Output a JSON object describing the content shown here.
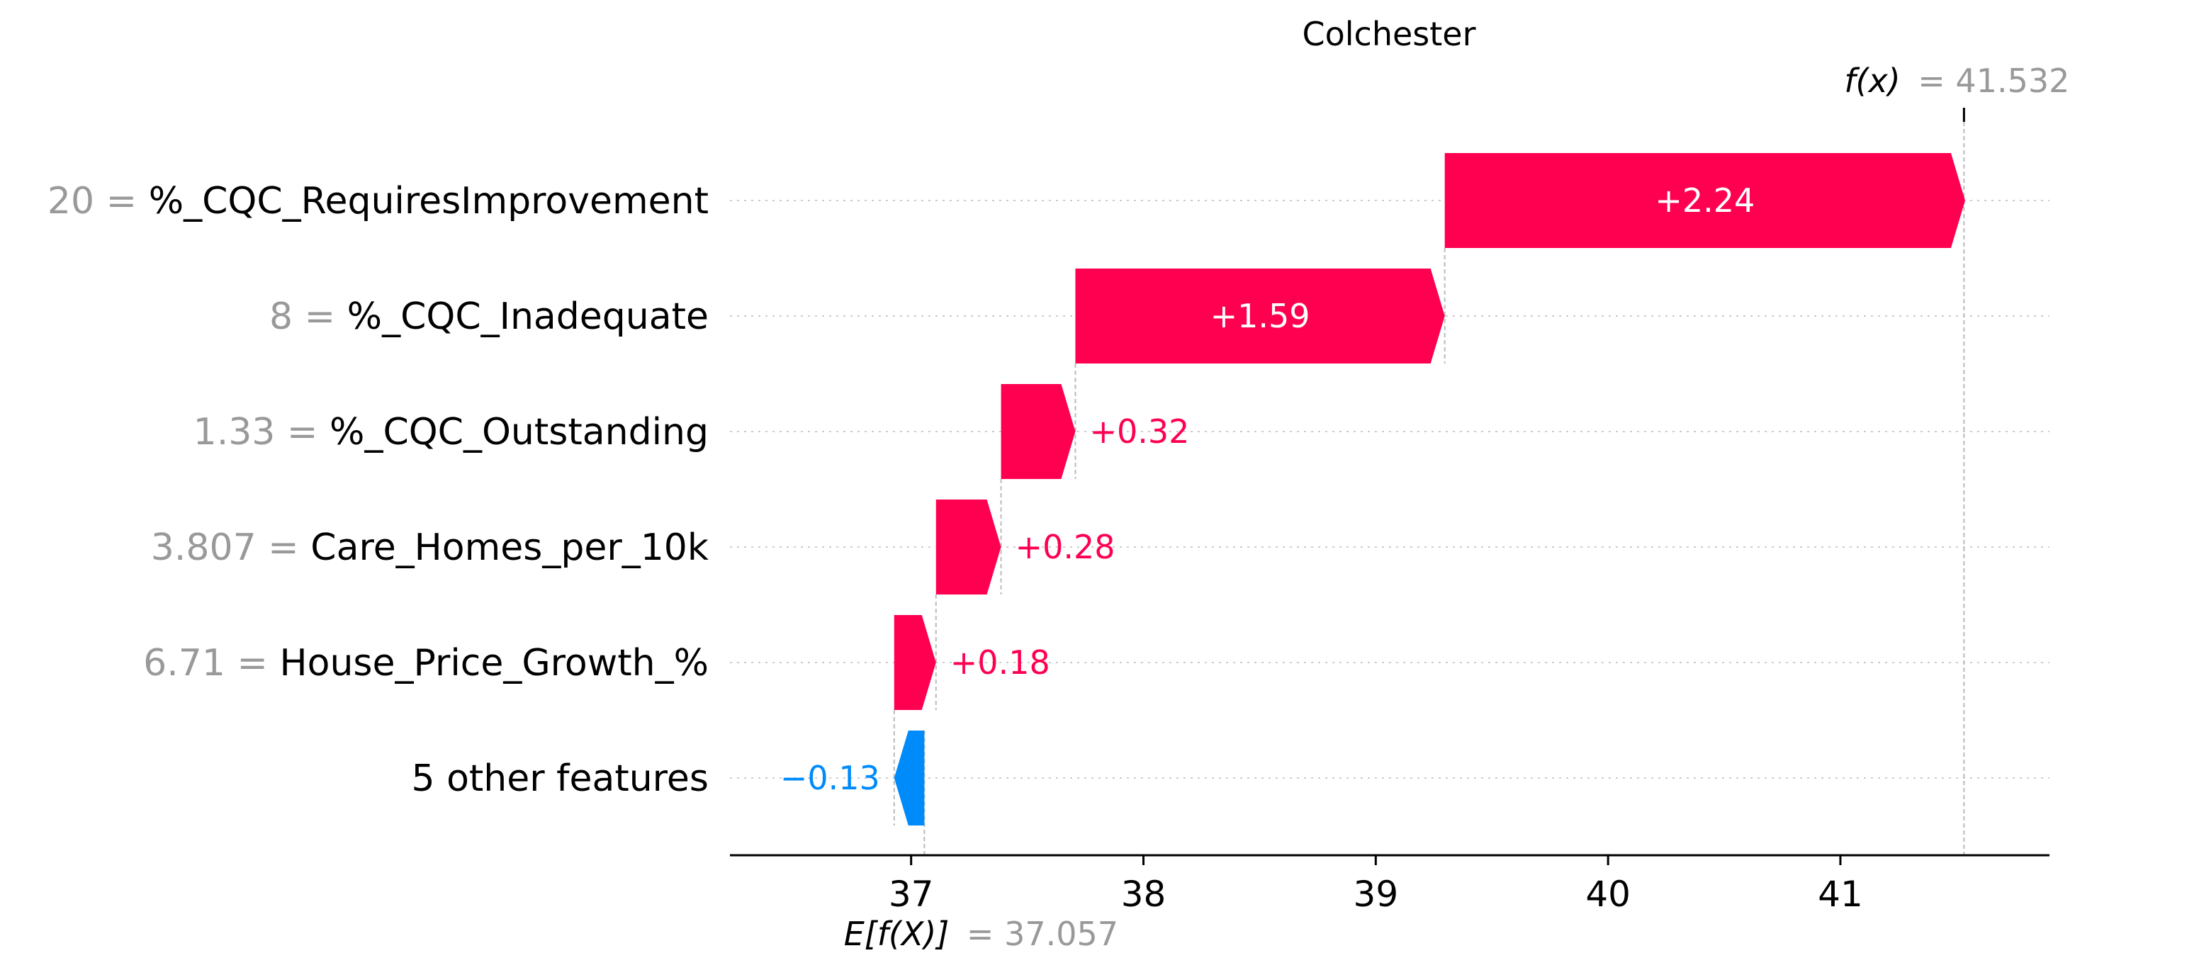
{
  "chart_data": {
    "type": "waterfall",
    "title": "Colchester",
    "features": [
      {
        "name": "%_CQC_RequiresImprovement",
        "value": "20",
        "contribution": 2.24,
        "label": "+2.24"
      },
      {
        "name": "%_CQC_Inadequate",
        "value": "8",
        "contribution": 1.59,
        "label": "+1.59"
      },
      {
        "name": "%_CQC_Outstanding",
        "value": "1.33",
        "contribution": 0.32,
        "label": "+0.32"
      },
      {
        "name": "Care_Homes_per_10k",
        "value": "3.807",
        "contribution": 0.28,
        "label": "+0.28"
      },
      {
        "name": "House_Price_Growth_%",
        "value": "6.71",
        "contribution": 0.18,
        "label": "+0.18"
      },
      {
        "name": "5 other features",
        "value": "",
        "contribution": -0.13,
        "label": "−0.13"
      }
    ],
    "base_value": 37.057,
    "base_label": "E[f(X)]",
    "base_value_text": "= 37.057",
    "output_value": 41.532,
    "output_label": "f(x)",
    "output_value_text": "= 41.532",
    "xticks": [
      37,
      38,
      39,
      40,
      41
    ],
    "xlim": [
      36.22,
      41.9
    ],
    "colors": {
      "positive": "#ff0051",
      "negative": "#008bfb",
      "axis": "#000000",
      "muted": "#999999"
    }
  }
}
